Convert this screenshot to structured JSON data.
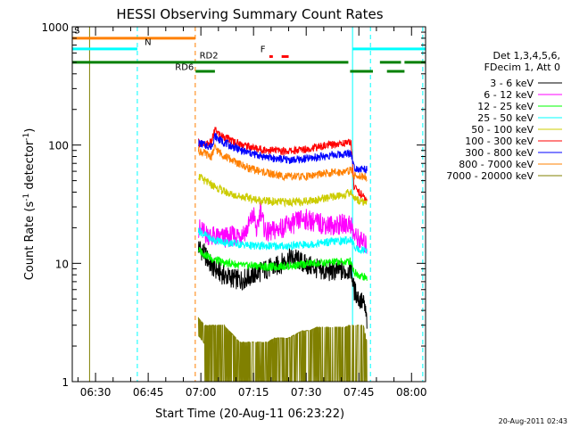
{
  "chart_data": {
    "type": "line",
    "title": "HESSI Observing Summary Count Rates",
    "xlabel": "Start Time (20-Aug-11 06:23:22)",
    "ylabel_main": "Count Rate (s",
    "ylabel_sup1": "-1",
    "ylabel_mid": " detector",
    "ylabel_sup2": "-1",
    "ylabel_end": ")",
    "xlim_minutes": [
      383.37,
      484.0
    ],
    "ylim": [
      1,
      1000
    ],
    "yscale": "log",
    "x_ticks": [
      {
        "m": 390,
        "label": "06:30"
      },
      {
        "m": 405,
        "label": "06:45"
      },
      {
        "m": 420,
        "label": "07:00"
      },
      {
        "m": 435,
        "label": "07:15"
      },
      {
        "m": 450,
        "label": "07:30"
      },
      {
        "m": 465,
        "label": "07:45"
      },
      {
        "m": 480,
        "label": "08:00"
      }
    ],
    "y_ticks": [
      {
        "v": 1,
        "label": "1"
      },
      {
        "v": 10,
        "label": "10"
      },
      {
        "v": 100,
        "label": "100"
      },
      {
        "v": 1000,
        "label": "1000"
      }
    ],
    "legend": {
      "placement": "right",
      "header1": "Det 1,3,4,5,6,",
      "header2": "FDecim 1, Att 0"
    },
    "series": [
      {
        "name": "3 - 6 keV",
        "color": "#000000",
        "points": [
          [
            419.3,
            14
          ],
          [
            421,
            12
          ],
          [
            423,
            9.5
          ],
          [
            425,
            8.5
          ],
          [
            427,
            7.8
          ],
          [
            429,
            7.5
          ],
          [
            431,
            7.2
          ],
          [
            433,
            7.5
          ],
          [
            435,
            8
          ],
          [
            437,
            8.5
          ],
          [
            439,
            9
          ],
          [
            441,
            9.2
          ],
          [
            443,
            10
          ],
          [
            445,
            11
          ],
          [
            447,
            11
          ],
          [
            449,
            10
          ],
          [
            451,
            9.5
          ],
          [
            453,
            9
          ],
          [
            455,
            8.5
          ],
          [
            457,
            8.5
          ],
          [
            459,
            8.7
          ],
          [
            461,
            8.5
          ],
          [
            462.8,
            9
          ],
          [
            463.6,
            6
          ],
          [
            465,
            5
          ],
          [
            466.5,
            4.5
          ],
          [
            467.3,
            3.2
          ]
        ]
      },
      {
        "name": "6 - 12 keV",
        "color": "#ff00ff",
        "points": [
          [
            419.3,
            20
          ],
          [
            421,
            18
          ],
          [
            423,
            17
          ],
          [
            425,
            16.5
          ],
          [
            427,
            16.5
          ],
          [
            429,
            17
          ],
          [
            431,
            17.5
          ],
          [
            433,
            19
          ],
          [
            435,
            26
          ],
          [
            436,
            18
          ],
          [
            437,
            30
          ],
          [
            438,
            20
          ],
          [
            439,
            18
          ],
          [
            441,
            19
          ],
          [
            443,
            20
          ],
          [
            445,
            21
          ],
          [
            447,
            22
          ],
          [
            449,
            24
          ],
          [
            451,
            23
          ],
          [
            453,
            22
          ],
          [
            455,
            21.5
          ],
          [
            457,
            21
          ],
          [
            459,
            21
          ],
          [
            461,
            21.5
          ],
          [
            462.8,
            21.5
          ],
          [
            463.6,
            17
          ],
          [
            465,
            16
          ],
          [
            467.3,
            14
          ]
        ]
      },
      {
        "name": "12 - 25 keV",
        "color": "#00ff00",
        "points": [
          [
            419.3,
            13
          ],
          [
            421,
            12
          ],
          [
            423,
            11
          ],
          [
            425,
            10.5
          ],
          [
            427,
            10
          ],
          [
            429,
            10
          ],
          [
            431,
            9.6
          ],
          [
            433,
            9.5
          ],
          [
            435,
            9.6
          ],
          [
            437,
            9.5
          ],
          [
            439,
            9.3
          ],
          [
            441,
            9.3
          ],
          [
            443,
            9.5
          ],
          [
            445,
            9.5
          ],
          [
            447,
            9.6
          ],
          [
            449,
            9.8
          ],
          [
            451,
            10
          ],
          [
            453,
            10
          ],
          [
            455,
            10
          ],
          [
            457,
            10.2
          ],
          [
            459,
            10.3
          ],
          [
            461,
            10.2
          ],
          [
            462.8,
            10.5
          ],
          [
            463.6,
            8.5
          ],
          [
            465,
            8
          ],
          [
            467.3,
            7.5
          ]
        ]
      },
      {
        "name": "25 - 50 keV",
        "color": "#00ffff",
        "points": [
          [
            419.3,
            19
          ],
          [
            421,
            17.5
          ],
          [
            423,
            16
          ],
          [
            425,
            15.5
          ],
          [
            427,
            15
          ],
          [
            429,
            14.8
          ],
          [
            431,
            14.5
          ],
          [
            433,
            14.3
          ],
          [
            435,
            14
          ],
          [
            437,
            14
          ],
          [
            439,
            14
          ],
          [
            441,
            14
          ],
          [
            443,
            14
          ],
          [
            445,
            14
          ],
          [
            447,
            14.2
          ],
          [
            449,
            14.3
          ],
          [
            451,
            14.5
          ],
          [
            453,
            14.7
          ],
          [
            455,
            15
          ],
          [
            457,
            15.2
          ],
          [
            459,
            15.4
          ],
          [
            461,
            15.5
          ],
          [
            462.8,
            16
          ],
          [
            463.6,
            14
          ],
          [
            465,
            13
          ],
          [
            467.3,
            13
          ]
        ]
      },
      {
        "name": "50 - 100 keV",
        "color": "#cccc00",
        "points": [
          [
            419.3,
            55
          ],
          [
            421,
            50
          ],
          [
            423,
            46
          ],
          [
            425,
            43
          ],
          [
            427,
            40
          ],
          [
            429,
            38
          ],
          [
            431,
            37
          ],
          [
            433,
            36
          ],
          [
            435,
            35
          ],
          [
            437,
            34
          ],
          [
            439,
            33.5
          ],
          [
            441,
            33
          ],
          [
            443,
            33
          ],
          [
            445,
            33
          ],
          [
            447,
            33
          ],
          [
            449,
            33.5
          ],
          [
            451,
            34
          ],
          [
            453,
            34.5
          ],
          [
            455,
            35.5
          ],
          [
            457,
            36
          ],
          [
            459,
            37
          ],
          [
            461,
            38
          ],
          [
            462.8,
            40
          ],
          [
            463.6,
            36
          ],
          [
            465,
            34
          ],
          [
            467.3,
            33
          ]
        ]
      },
      {
        "name": "100 - 300 keV",
        "color": "#ff0000",
        "points": [
          [
            419.3,
            105
          ],
          [
            421,
            100
          ],
          [
            423,
            105
          ],
          [
            424,
            135
          ],
          [
            425,
            125
          ],
          [
            427,
            115
          ],
          [
            429,
            108
          ],
          [
            431,
            103
          ],
          [
            433,
            98
          ],
          [
            435,
            95
          ],
          [
            437,
            92
          ],
          [
            439,
            91
          ],
          [
            441,
            90
          ],
          [
            443,
            89
          ],
          [
            445,
            89
          ],
          [
            447,
            90
          ],
          [
            449,
            92
          ],
          [
            451,
            94
          ],
          [
            453,
            96
          ],
          [
            455,
            98
          ],
          [
            457,
            100
          ],
          [
            459,
            102
          ],
          [
            461,
            104
          ],
          [
            462.8,
            106
          ],
          [
            463.6,
            45
          ],
          [
            465,
            40
          ],
          [
            467.3,
            34
          ]
        ]
      },
      {
        "name": "300 - 800 keV",
        "color": "#0000ff",
        "points": [
          [
            419.3,
            105
          ],
          [
            421,
            100
          ],
          [
            423,
            97
          ],
          [
            424,
            120
          ],
          [
            425,
            112
          ],
          [
            427,
            104
          ],
          [
            429,
            97
          ],
          [
            431,
            91
          ],
          [
            433,
            87
          ],
          [
            435,
            84
          ],
          [
            437,
            81
          ],
          [
            439,
            79
          ],
          [
            441,
            77
          ],
          [
            443,
            76
          ],
          [
            445,
            75
          ],
          [
            447,
            75
          ],
          [
            449,
            76
          ],
          [
            451,
            77
          ],
          [
            453,
            79
          ],
          [
            455,
            80
          ],
          [
            457,
            82
          ],
          [
            459,
            83
          ],
          [
            461,
            84
          ],
          [
            462.8,
            86
          ],
          [
            463.6,
            65
          ],
          [
            465,
            63
          ],
          [
            467.3,
            62
          ]
        ]
      },
      {
        "name": "800 - 7000 keV",
        "color": "#ff8000",
        "points": [
          [
            419.3,
            90
          ],
          [
            421,
            85
          ],
          [
            423,
            80
          ],
          [
            424,
            95
          ],
          [
            425,
            88
          ],
          [
            427,
            80
          ],
          [
            429,
            74
          ],
          [
            431,
            69
          ],
          [
            433,
            65
          ],
          [
            435,
            62
          ],
          [
            437,
            60
          ],
          [
            439,
            58
          ],
          [
            441,
            56
          ],
          [
            443,
            55
          ],
          [
            445,
            54
          ],
          [
            447,
            54
          ],
          [
            449,
            54
          ],
          [
            451,
            55
          ],
          [
            453,
            56
          ],
          [
            455,
            57
          ],
          [
            457,
            58
          ],
          [
            459,
            59
          ],
          [
            461,
            60
          ],
          [
            462.8,
            61
          ],
          [
            463.6,
            55
          ],
          [
            465,
            55
          ],
          [
            467.3,
            54
          ]
        ]
      },
      {
        "name": "7000 - 20000 keV",
        "color": "#808000",
        "points": [
          [
            419.3,
            3.5
          ],
          [
            421,
            3
          ],
          [
            423,
            2.5
          ],
          [
            425,
            2
          ],
          [
            427,
            1.6
          ],
          [
            429,
            1.4
          ],
          [
            431,
            1.2
          ],
          [
            433,
            1.2
          ],
          [
            435,
            1.2
          ],
          [
            437,
            1.2
          ],
          [
            439,
            1.2
          ],
          [
            441,
            1.3
          ],
          [
            443,
            1.3
          ],
          [
            445,
            1.3
          ],
          [
            447,
            1.4
          ],
          [
            449,
            1.5
          ],
          [
            451,
            1.5
          ],
          [
            453,
            1.6
          ],
          [
            455,
            1.6
          ],
          [
            457,
            1.6
          ],
          [
            459,
            1.6
          ],
          [
            461,
            1.6
          ],
          [
            462.8,
            1.7
          ],
          [
            463.6,
            2.5
          ],
          [
            465,
            2.5
          ],
          [
            467.3,
            1.2
          ]
        ]
      }
    ],
    "vertical_lines": [
      {
        "m": 388.3,
        "color": "#808000",
        "dash": "none"
      },
      {
        "m": 401.9,
        "color": "#00ffff",
        "dash": "dashed"
      },
      {
        "m": 418.4,
        "color": "#ff8000",
        "dash": "dashed"
      },
      {
        "m": 463.2,
        "color": "#00ffff",
        "dash": "none"
      },
      {
        "m": 468.3,
        "color": "#00ffff",
        "dash": "dashed"
      },
      {
        "m": 483.2,
        "color": "#00ffff",
        "dash": "dashed"
      }
    ],
    "flags": [
      {
        "label": "S",
        "color": "#ff8000",
        "y": 800,
        "segments": [
          [
            383.37,
            418.4
          ]
        ]
      },
      {
        "label": "N",
        "color": "#00ffff",
        "y": 650,
        "segments": [
          [
            383.37,
            401.9
          ],
          [
            463.2,
            484.0
          ]
        ]
      },
      {
        "label": "RD2",
        "color": "#008000",
        "y": 500,
        "segments": [
          [
            383.37,
            462.0
          ],
          [
            471.0,
            477.0
          ],
          [
            478.0,
            484.0
          ]
        ]
      },
      {
        "label": "RD6",
        "color": "#008000",
        "y": 420,
        "segments": [
          [
            418.5,
            424.0
          ],
          [
            462.5,
            469.0
          ],
          [
            473.0,
            478.0
          ]
        ]
      },
      {
        "label": "F",
        "color": "#ff0000",
        "y": 560,
        "segments": [
          [
            439.5,
            440.5
          ],
          [
            443.0,
            445.0
          ]
        ]
      }
    ],
    "stamp": "20-Aug-2011 02:43"
  }
}
